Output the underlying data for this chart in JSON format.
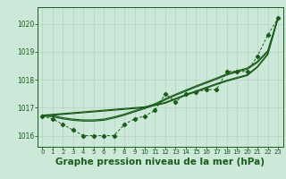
{
  "background_color": "#cce8d8",
  "line_color": "#1a5c1a",
  "xlabel": "Graphe pression niveau de la mer (hPa)",
  "xlabel_fontsize": 7.5,
  "ylim": [
    1015.6,
    1020.6
  ],
  "xlim": [
    -0.5,
    23.5
  ],
  "yticks": [
    1016,
    1017,
    1018,
    1019,
    1020
  ],
  "xticks": [
    0,
    1,
    2,
    3,
    4,
    5,
    6,
    7,
    8,
    9,
    10,
    11,
    12,
    13,
    14,
    15,
    16,
    17,
    18,
    19,
    20,
    21,
    22,
    23
  ],
  "y_jagged": [
    1016.7,
    1016.6,
    1016.4,
    1016.2,
    1016.0,
    1016.0,
    1016.0,
    1016.0,
    1016.4,
    1016.6,
    1016.7,
    1016.9,
    1017.5,
    1017.2,
    1017.5,
    1017.55,
    1017.65,
    1017.65,
    1018.3,
    1018.3,
    1018.3,
    1018.85,
    1019.6,
    1020.2
  ],
  "y_smooth1": [
    1016.7,
    1016.68,
    1016.6,
    1016.55,
    1016.52,
    1016.52,
    1016.55,
    1016.63,
    1016.73,
    1016.85,
    1016.97,
    1017.1,
    1017.28,
    1017.44,
    1017.59,
    1017.74,
    1017.88,
    1018.02,
    1018.17,
    1018.28,
    1018.38,
    1018.62,
    1019.0,
    1020.2
  ],
  "y_smooth2": [
    1016.7,
    1016.68,
    1016.6,
    1016.55,
    1016.52,
    1016.52,
    1016.55,
    1016.63,
    1016.73,
    1016.85,
    1016.97,
    1017.1,
    1017.28,
    1017.44,
    1017.59,
    1017.74,
    1017.88,
    1018.02,
    1018.17,
    1018.28,
    1018.38,
    1018.62,
    1019.0,
    1020.2
  ],
  "y_linear1": [
    1016.7,
    1016.73,
    1016.76,
    1016.79,
    1016.82,
    1016.85,
    1016.88,
    1016.91,
    1016.94,
    1016.97,
    1017.0,
    1017.08,
    1017.16,
    1017.3,
    1017.44,
    1017.57,
    1017.7,
    1017.83,
    1017.95,
    1018.05,
    1018.15,
    1018.45,
    1018.9,
    1020.2
  ],
  "y_linear2": [
    1016.7,
    1016.73,
    1016.76,
    1016.79,
    1016.82,
    1016.85,
    1016.88,
    1016.91,
    1016.94,
    1016.97,
    1017.0,
    1017.08,
    1017.16,
    1017.3,
    1017.44,
    1017.57,
    1017.7,
    1017.83,
    1017.95,
    1018.05,
    1018.15,
    1018.45,
    1018.9,
    1020.2
  ]
}
